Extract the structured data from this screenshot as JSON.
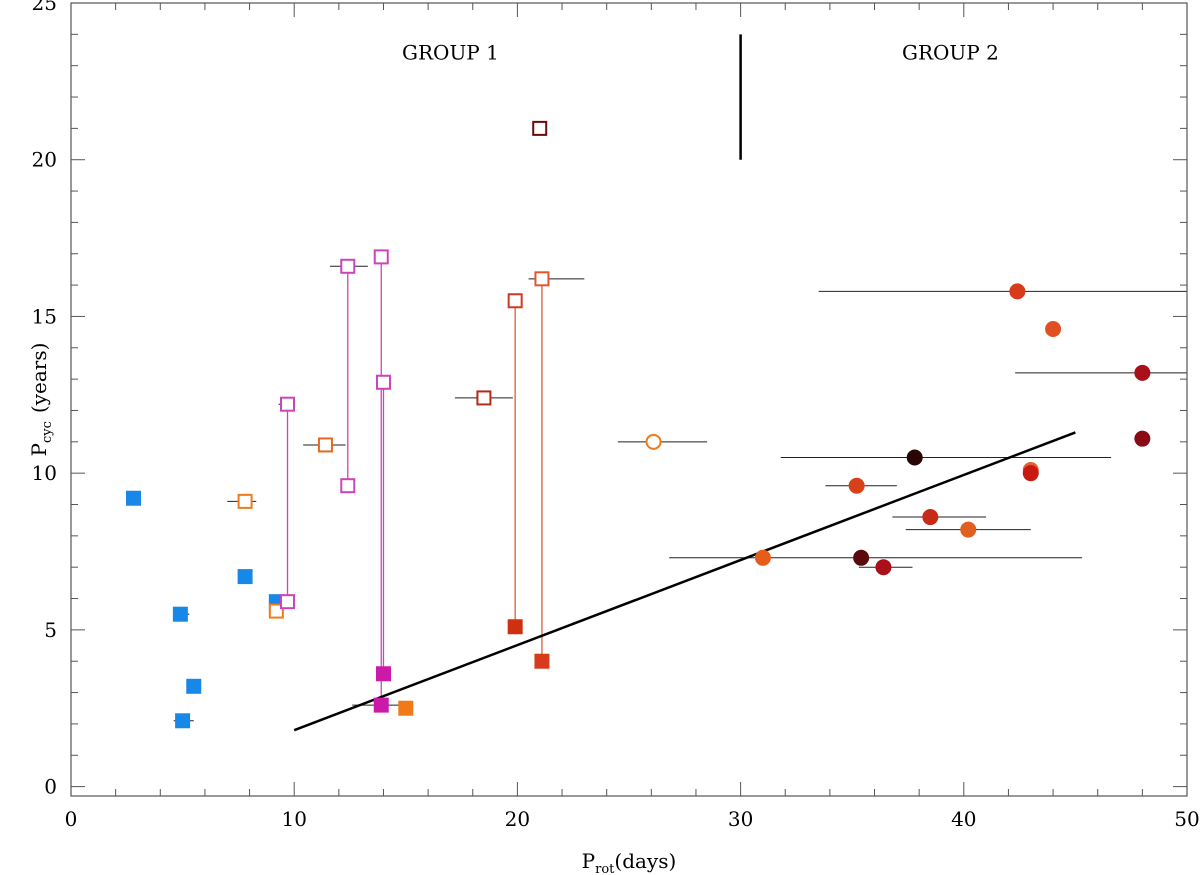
{
  "chart_data": {
    "type": "scatter",
    "title": "",
    "xlabel": {
      "main": "P",
      "sub": "rot",
      "unit": "(days)"
    },
    "ylabel": {
      "main": "P",
      "sub": "cyc",
      "unit": "(years)"
    },
    "xlim": [
      0,
      50
    ],
    "ylim": [
      -0.3,
      25
    ],
    "x_ticks": [
      0,
      10,
      20,
      30,
      40,
      50
    ],
    "y_ticks": [
      0,
      5,
      10,
      15,
      20,
      25
    ],
    "x_minor_step": 2,
    "y_minor_step": 1,
    "grid": false,
    "annotations": {
      "group1": {
        "text": "GROUP 1",
        "x": 17,
        "y": 23.2
      },
      "group2": {
        "text": "GROUP 2",
        "x": 39.4,
        "y": 23.2
      },
      "divider": {
        "x": 30,
        "y1": 20,
        "y2": 24
      }
    },
    "fit_line": {
      "x1": 10,
      "y1": 1.8,
      "x2": 45,
      "y2": 11.3
    },
    "connectors": [
      {
        "x": 9.7,
        "y1": 5.9,
        "y2": 12.2,
        "color": "#cc44bb"
      },
      {
        "x": 12.4,
        "y1": 9.6,
        "y2": 16.6,
        "color": "#cc44bb"
      },
      {
        "x": 13.9,
        "y1": 2.6,
        "y2": 16.9,
        "color": "#cc44bb"
      },
      {
        "x": 14.0,
        "y1": 3.6,
        "y2": 12.9,
        "color": "#cc44bb"
      },
      {
        "x": 19.9,
        "y1": 5.1,
        "y2": 15.5,
        "color": "#d9603a"
      },
      {
        "x": 21.1,
        "y1": 4.0,
        "y2": 16.2,
        "color": "#d9603a"
      }
    ],
    "points": [
      {
        "x": 2.8,
        "y": 9.2,
        "shape": "square",
        "filled": true,
        "color": "#1888e8",
        "xerr": [
          2.6,
          3.0
        ]
      },
      {
        "x": 4.9,
        "y": 5.5,
        "shape": "square",
        "filled": true,
        "color": "#1888e8",
        "xerr": [
          4.6,
          5.3
        ]
      },
      {
        "x": 5.0,
        "y": 2.1,
        "shape": "square",
        "filled": true,
        "color": "#1888e8",
        "xerr": [
          4.6,
          5.5
        ]
      },
      {
        "x": 5.5,
        "y": 3.2,
        "shape": "square",
        "filled": true,
        "color": "#1888e8",
        "xerr": [
          5.3,
          5.7
        ]
      },
      {
        "x": 7.8,
        "y": 6.7,
        "shape": "square",
        "filled": true,
        "color": "#1888e8",
        "xerr": [
          7.5,
          8.1
        ]
      },
      {
        "x": 9.2,
        "y": 5.9,
        "shape": "square",
        "filled": true,
        "color": "#1888e8",
        "xerr": [
          8.9,
          9.5
        ]
      },
      {
        "x": 7.8,
        "y": 9.1,
        "shape": "square",
        "filled": false,
        "color": "#f07a1a",
        "xerr": [
          7.0,
          8.3
        ]
      },
      {
        "x": 9.2,
        "y": 5.6,
        "shape": "square",
        "filled": false,
        "color": "#f07a1a",
        "xerr": [
          9.0,
          9.4
        ]
      },
      {
        "x": 9.7,
        "y": 12.2,
        "shape": "square",
        "filled": false,
        "color": "#cc44bb",
        "xerr": [
          9.3,
          10.0
        ]
      },
      {
        "x": 9.7,
        "y": 5.9,
        "shape": "square",
        "filled": false,
        "color": "#cc44bb",
        "xerr": [
          9.4,
          10.0
        ]
      },
      {
        "x": 11.4,
        "y": 10.9,
        "shape": "square",
        "filled": false,
        "color": "#e66820",
        "xerr": [
          10.4,
          12.3
        ]
      },
      {
        "x": 12.4,
        "y": 16.6,
        "shape": "square",
        "filled": false,
        "color": "#cc44bb",
        "xerr": [
          11.6,
          13.3
        ]
      },
      {
        "x": 12.4,
        "y": 9.6,
        "shape": "square",
        "filled": false,
        "color": "#cc44bb",
        "xerr": null
      },
      {
        "x": 13.9,
        "y": 16.9,
        "shape": "square",
        "filled": false,
        "color": "#cc44bb",
        "xerr": [
          13.6,
          14.2
        ]
      },
      {
        "x": 14.0,
        "y": 12.9,
        "shape": "square",
        "filled": false,
        "color": "#cc44bb",
        "xerr": null
      },
      {
        "x": 14.0,
        "y": 3.6,
        "shape": "square",
        "filled": true,
        "color": "#cc1aa8",
        "xerr": null
      },
      {
        "x": 13.9,
        "y": 2.6,
        "shape": "square",
        "filled": true,
        "color": "#cc1aa8",
        "xerr": [
          12.6,
          15.0
        ]
      },
      {
        "x": 15.0,
        "y": 2.5,
        "shape": "square",
        "filled": true,
        "color": "#f07a1a",
        "xerr": [
          14.8,
          15.2
        ]
      },
      {
        "x": 18.5,
        "y": 12.4,
        "shape": "square",
        "filled": false,
        "color": "#b82818",
        "xerr": [
          17.2,
          19.8
        ]
      },
      {
        "x": 19.9,
        "y": 15.5,
        "shape": "square",
        "filled": false,
        "color": "#d03822",
        "xerr": [
          19.7,
          20.2
        ]
      },
      {
        "x": 19.9,
        "y": 5.1,
        "shape": "square",
        "filled": true,
        "color": "#d03010",
        "xerr": null
      },
      {
        "x": 21.0,
        "y": 21.0,
        "shape": "square",
        "filled": false,
        "color": "#6a0a0a",
        "xerr": [
          20.8,
          21.2
        ]
      },
      {
        "x": 21.1,
        "y": 16.2,
        "shape": "square",
        "filled": false,
        "color": "#e05530",
        "xerr": [
          20.5,
          23.0
        ]
      },
      {
        "x": 21.1,
        "y": 4.0,
        "shape": "square",
        "filled": true,
        "color": "#d83a1c",
        "xerr": null
      },
      {
        "x": 26.1,
        "y": 11.0,
        "shape": "circle",
        "filled": false,
        "color": "#f07a1a",
        "xerr": [
          24.5,
          28.5
        ]
      },
      {
        "x": 31.0,
        "y": 7.3,
        "shape": "circle",
        "filled": true,
        "color": "#e85c1a",
        "xerr": [
          26.8,
          45.3
        ]
      },
      {
        "x": 35.2,
        "y": 9.6,
        "shape": "circle",
        "filled": true,
        "color": "#d8401a",
        "xerr": [
          33.8,
          37.0
        ]
      },
      {
        "x": 35.4,
        "y": 7.3,
        "shape": "circle",
        "filled": true,
        "color": "#5a0a0a",
        "xerr": null
      },
      {
        "x": 36.4,
        "y": 7.0,
        "shape": "circle",
        "filled": true,
        "color": "#a8101a",
        "xerr": [
          35.3,
          37.7
        ]
      },
      {
        "x": 37.8,
        "y": 10.5,
        "shape": "circle",
        "filled": true,
        "color": "#2a0505",
        "xerr": [
          31.8,
          46.6
        ]
      },
      {
        "x": 38.5,
        "y": 8.6,
        "shape": "circle",
        "filled": true,
        "color": "#c82a18",
        "xerr": [
          36.8,
          41.0
        ]
      },
      {
        "x": 40.2,
        "y": 8.2,
        "shape": "circle",
        "filled": true,
        "color": "#e06020",
        "xerr": [
          37.4,
          43.0
        ]
      },
      {
        "x": 42.4,
        "y": 15.8,
        "shape": "circle",
        "filled": true,
        "color": "#d83a1c",
        "xerr": [
          33.5,
          50.0
        ]
      },
      {
        "x": 43.0,
        "y": 10.1,
        "shape": "circle",
        "filled": true,
        "color": "#e06030",
        "xerr": null
      },
      {
        "x": 43.0,
        "y": 10.0,
        "shape": "circle",
        "filled": true,
        "color": "#c8180f",
        "xerr": null
      },
      {
        "x": 44.0,
        "y": 14.6,
        "shape": "circle",
        "filled": true,
        "color": "#e05020",
        "xerr": null
      },
      {
        "x": 48.0,
        "y": 13.2,
        "shape": "circle",
        "filled": true,
        "color": "#a8101a",
        "xerr": [
          42.3,
          50.0
        ]
      },
      {
        "x": 48.0,
        "y": 11.1,
        "shape": "circle",
        "filled": true,
        "color": "#8a0a14",
        "xerr": null
      }
    ]
  }
}
